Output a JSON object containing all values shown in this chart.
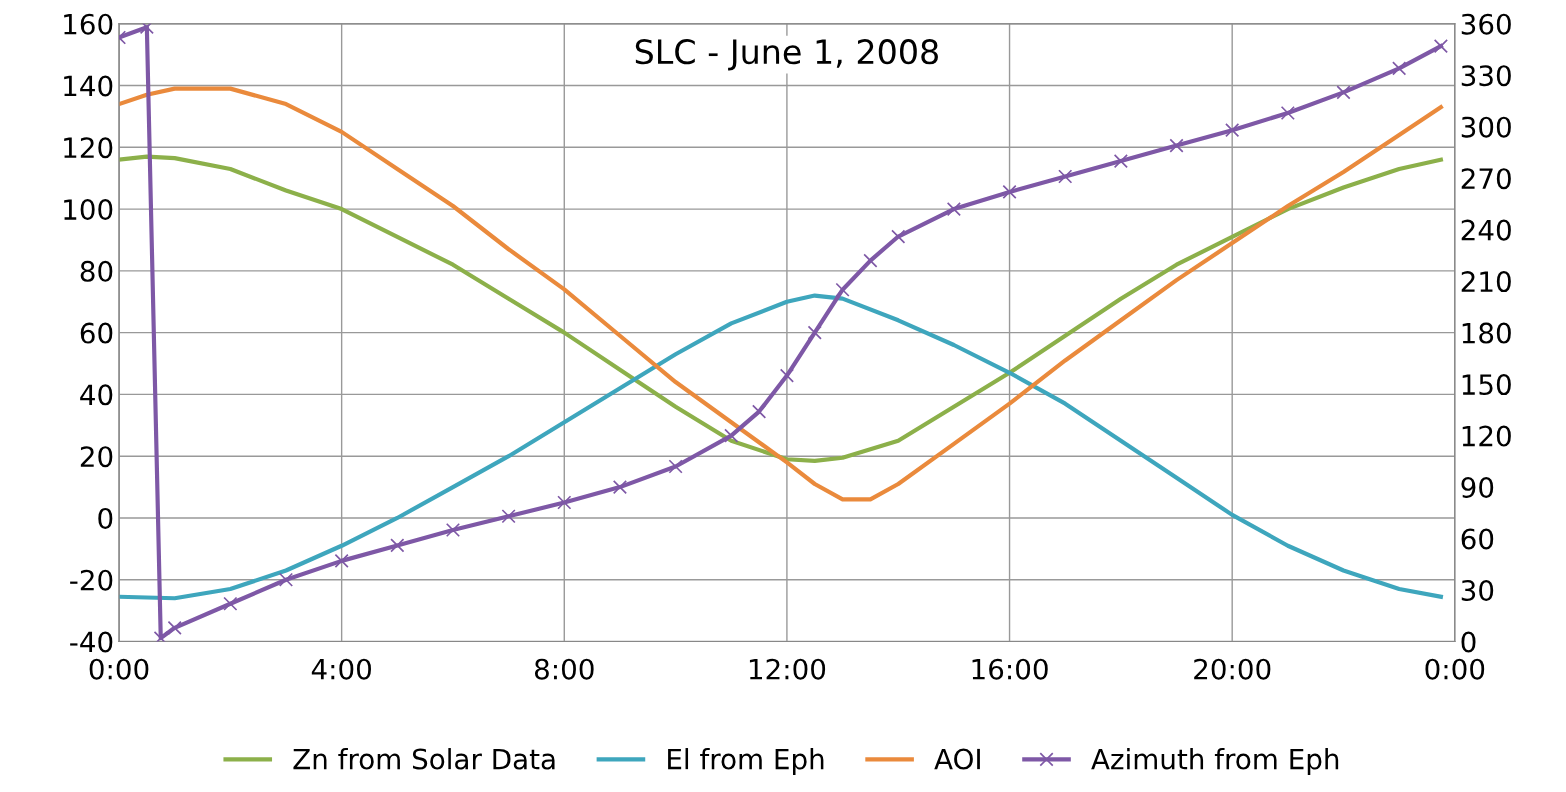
{
  "chart_data": {
    "type": "line",
    "title": "SLC - June 1, 2008",
    "xlim": [
      0,
      24
    ],
    "xticks": [
      {
        "value": 0,
        "label": "0:00"
      },
      {
        "value": 4,
        "label": "4:00"
      },
      {
        "value": 8,
        "label": "8:00"
      },
      {
        "value": 12,
        "label": "12:00"
      },
      {
        "value": 16,
        "label": "16:00"
      },
      {
        "value": 20,
        "label": "20:00"
      },
      {
        "value": 24,
        "label": "0:00"
      }
    ],
    "ylim": [
      -40,
      160
    ],
    "yticks": [
      -40,
      -20,
      0,
      20,
      40,
      60,
      80,
      100,
      120,
      140,
      160
    ],
    "y2lim": [
      0,
      360
    ],
    "y2ticks": [
      0,
      30,
      60,
      90,
      120,
      150,
      180,
      210,
      240,
      270,
      300,
      330,
      360
    ],
    "grid": true,
    "legend": "bottom",
    "line_style": "solid",
    "series": [
      {
        "name": "Zn from Solar Data",
        "color": "#8cb04a",
        "marker": "none",
        "x": [
          0,
          0.5,
          1,
          2,
          3,
          4,
          5,
          6,
          7,
          8,
          9,
          10,
          11,
          12,
          12.5,
          13,
          14,
          15,
          16,
          17,
          18,
          19,
          20,
          21,
          22,
          23,
          23.75
        ],
        "values": [
          116,
          117,
          116.5,
          113,
          106,
          100,
          91,
          82,
          71,
          60,
          48,
          36,
          25,
          19,
          18.5,
          19.5,
          25,
          36,
          47,
          59,
          71,
          82,
          91,
          100,
          107,
          113,
          116
        ]
      },
      {
        "name": "El from Eph",
        "color": "#3ea6bd",
        "marker": "none",
        "x": [
          0,
          1,
          2,
          3,
          4,
          5,
          6,
          7,
          8,
          9,
          10,
          11,
          12,
          12.5,
          13,
          14,
          15,
          16,
          17,
          18,
          19,
          20,
          21,
          22,
          23,
          23.75
        ],
        "values": [
          -25.5,
          -26,
          -23,
          -17,
          -9,
          0,
          10,
          20,
          31,
          42,
          53,
          63,
          70,
          72,
          71,
          64,
          56,
          47,
          37,
          25,
          13,
          1,
          -9,
          -17,
          -23,
          -25.5
        ]
      },
      {
        "name": "AOI",
        "color": "#ea8a3c",
        "marker": "none",
        "x": [
          0,
          0.5,
          1,
          2,
          3,
          4,
          5,
          6,
          7,
          8,
          9,
          10,
          11,
          12,
          12.5,
          13,
          13.5,
          14,
          15,
          16,
          17,
          18,
          19,
          20,
          21,
          22,
          23,
          23.75
        ],
        "values": [
          134,
          137,
          139,
          139,
          134,
          125,
          113,
          101,
          87,
          74,
          59,
          44,
          31,
          18,
          11,
          6,
          6,
          11,
          24,
          37,
          51,
          64,
          77,
          89,
          101,
          112,
          124,
          133
        ]
      },
      {
        "name": "Azimuth from Eph",
        "color": "#7e58a6",
        "marker": "cross",
        "axis": "y2",
        "x": [
          0,
          0.5,
          0.75,
          1,
          2,
          3,
          4,
          5,
          6,
          7,
          8,
          9,
          10,
          11,
          11.5,
          12,
          12.5,
          13,
          13.5,
          14,
          15,
          16,
          17,
          18,
          19,
          20,
          21,
          22,
          23,
          23.75
        ],
        "values": [
          352,
          358,
          2,
          8,
          22,
          36,
          47,
          56,
          65,
          73,
          81,
          90,
          102,
          120,
          134,
          155,
          180,
          205,
          222,
          236,
          252,
          262,
          271,
          280,
          289,
          298,
          308,
          320,
          334,
          347
        ]
      }
    ]
  }
}
